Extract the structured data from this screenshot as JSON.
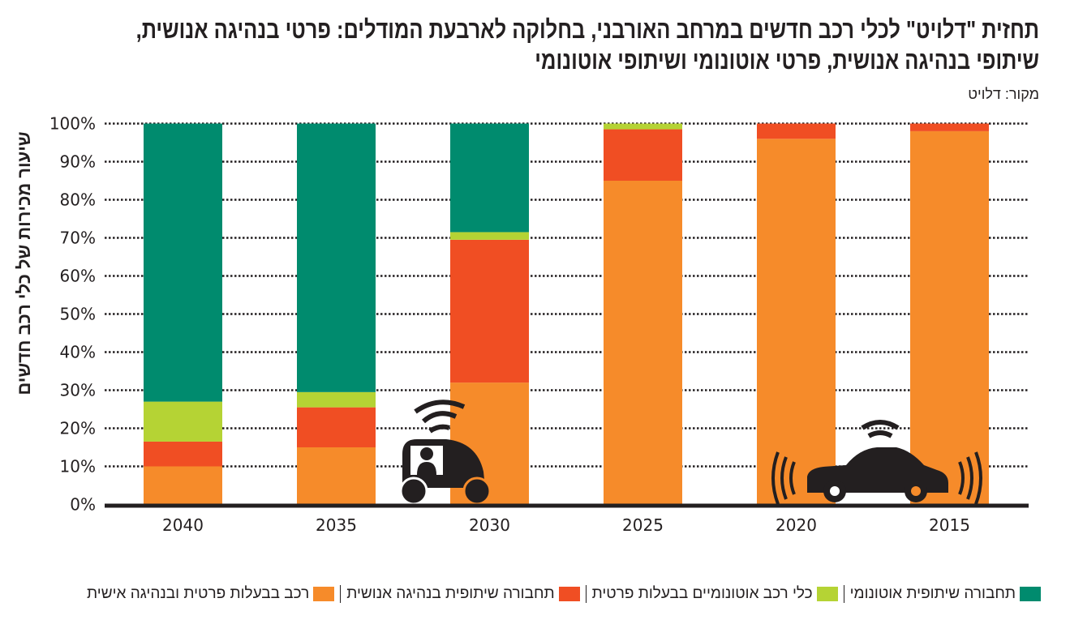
{
  "title": {
    "line1": "תחזית \"דלויט\" לכלי רכב חדשים במרחב האורבני, בחלוקה לארבעת המודלים: פרטי בנהיגה אנושית,",
    "line2": "שיתופי בנהיגה אנושית, פרטי אוטונומי ושיתופי אוטונומי"
  },
  "source": "מקור: דלויט",
  "colors": {
    "orange": "#F68B2A",
    "red": "#F04E23",
    "light_green": "#B5D334",
    "green": "#008B6E",
    "axis": "#231f20"
  },
  "chart_data": {
    "type": "bar",
    "stacked": true,
    "title": "תחזית \"דלויט\" לכלי רכב חדשים במרחב האורבני, בחלוקה לארבעת המודלים: פרטי בנהיגה אנושית, שיתופי בנהיגה אנושית, פרטי אוטונומי ושיתופי אוטונומי",
    "xlabel": "",
    "ylabel": "שיעור מכירות של כלי רכב חדשים",
    "ylim": [
      0,
      100
    ],
    "y_ticks": [
      "0%",
      "10%",
      "20%",
      "30%",
      "40%",
      "50%",
      "60%",
      "70%",
      "80%",
      "90%",
      "100%"
    ],
    "grid": true,
    "legend_position": "bottom",
    "categories": [
      "2040",
      "2035",
      "2030",
      "2025",
      "2020",
      "2015"
    ],
    "series": [
      {
        "name": "רכב בבעלות פרטית ובנהיגה אישית",
        "color": "#F68B2A",
        "values": [
          10,
          15,
          32,
          85,
          96,
          98
        ]
      },
      {
        "name": "תחבורה שיתופית בנהיגה אנושית",
        "color": "#F04E23",
        "values": [
          6.5,
          10.5,
          37.5,
          13.5,
          4,
          2
        ]
      },
      {
        "name": "כלי רכב אוטונומיים בבעלות פרטית",
        "color": "#B5D334",
        "values": [
          10.5,
          4,
          2,
          1.5,
          0,
          0
        ]
      },
      {
        "name": "תחבורה שיתופית אוטונומי",
        "color": "#008B6E",
        "values": [
          73,
          70.5,
          28.5,
          0,
          0,
          0
        ]
      }
    ]
  },
  "legend": [
    {
      "label": "תחבורה שיתופית אוטונומי",
      "color": "#008B6E"
    },
    {
      "label": "כלי רכב אוטונומיים בבעלות פרטית",
      "color": "#B5D334"
    },
    {
      "label": "תחבורה שיתופית בנהיגה אנושית",
      "color": "#F04E23"
    },
    {
      "label": "רכב בבעלות פרטית ובנהיגה אישית",
      "color": "#F68B2A"
    }
  ],
  "icons": {
    "shared_autonomous_pod": "autonomous-shuttle-icon",
    "connected_car": "connected-car-icon"
  }
}
